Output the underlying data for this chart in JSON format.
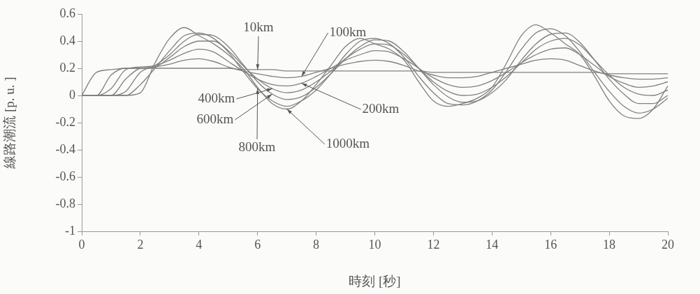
{
  "chart_data": {
    "type": "line",
    "xlabel": "時刻 [秒]",
    "ylabel": "線路潮流 [p. u. ]",
    "x": [
      0,
      0.5,
      1,
      1.5,
      2,
      2.5,
      3,
      3.5,
      4,
      4.5,
      5,
      5.5,
      6,
      6.5,
      7,
      7.5,
      8,
      8.5,
      9,
      9.5,
      10,
      10.5,
      11,
      11.5,
      12,
      12.5,
      13,
      13.5,
      14,
      14.5,
      15,
      15.5,
      16,
      16.5,
      17,
      17.5,
      18,
      18.5,
      19,
      19.5,
      20
    ],
    "xlim": [
      0,
      20
    ],
    "xticks": [
      0,
      2,
      4,
      6,
      8,
      10,
      12,
      14,
      16,
      18,
      20
    ],
    "ylim": [
      -1,
      0.6
    ],
    "yticks": [
      -1,
      -0.8,
      -0.6,
      -0.4,
      -0.2,
      0,
      0.2,
      0.4,
      0.6
    ],
    "grid": false,
    "legend": false,
    "marker": "none",
    "line_style": "solid",
    "series": [
      {
        "name": "10km",
        "color": "#808080",
        "values": [
          0,
          0.17,
          0.19,
          0.2,
          0.2,
          0.2,
          0.2,
          0.2,
          0.2,
          0.2,
          0.2,
          0.19,
          0.19,
          0.19,
          0.18,
          0.18,
          0.18,
          0.18,
          0.18,
          0.18,
          0.18,
          0.18,
          0.18,
          0.18,
          0.17,
          0.17,
          0.17,
          0.17,
          0.17,
          0.17,
          0.17,
          0.17,
          0.17,
          0.17,
          0.17,
          0.17,
          0.16,
          0.16,
          0.16,
          0.16,
          0.16
        ]
      },
      {
        "name": "100km",
        "color": "#808080",
        "values": [
          0,
          0,
          0.15,
          0.2,
          0.2,
          0.21,
          0.23,
          0.26,
          0.27,
          0.25,
          0.21,
          0.18,
          0.16,
          0.14,
          0.13,
          0.14,
          0.17,
          0.2,
          0.23,
          0.25,
          0.26,
          0.25,
          0.22,
          0.18,
          0.15,
          0.13,
          0.13,
          0.14,
          0.17,
          0.2,
          0.23,
          0.26,
          0.27,
          0.26,
          0.22,
          0.18,
          0.15,
          0.13,
          0.12,
          0.12,
          0.13
        ]
      },
      {
        "name": "200km",
        "color": "#808080",
        "values": [
          0,
          0,
          0.05,
          0.19,
          0.21,
          0.22,
          0.26,
          0.31,
          0.34,
          0.32,
          0.25,
          0.18,
          0.12,
          0.08,
          0.07,
          0.09,
          0.14,
          0.2,
          0.26,
          0.3,
          0.33,
          0.32,
          0.27,
          0.2,
          0.13,
          0.08,
          0.06,
          0.07,
          0.11,
          0.17,
          0.24,
          0.3,
          0.34,
          0.35,
          0.3,
          0.22,
          0.14,
          0.09,
          0.06,
          0.07,
          0.1
        ]
      },
      {
        "name": "400km",
        "color": "#808080",
        "values": [
          0,
          0,
          0,
          0.12,
          0.2,
          0.21,
          0.28,
          0.36,
          0.4,
          0.4,
          0.33,
          0.22,
          0.12,
          0.05,
          0.02,
          0.04,
          0.1,
          0.18,
          0.27,
          0.34,
          0.38,
          0.37,
          0.3,
          0.2,
          0.1,
          0.03,
          0,
          0.01,
          0.06,
          0.14,
          0.24,
          0.34,
          0.4,
          0.42,
          0.37,
          0.26,
          0.15,
          0.06,
          0.01,
          0,
          0.04
        ]
      },
      {
        "name": "600km",
        "color": "#808080",
        "values": [
          0,
          0,
          0,
          0.03,
          0.17,
          0.22,
          0.3,
          0.4,
          0.45,
          0.44,
          0.36,
          0.23,
          0.1,
          0.01,
          -0.03,
          -0.01,
          0.06,
          0.16,
          0.27,
          0.36,
          0.41,
          0.4,
          0.32,
          0.2,
          0.08,
          -0.01,
          -0.05,
          -0.04,
          0.02,
          0.12,
          0.26,
          0.38,
          0.45,
          0.46,
          0.39,
          0.26,
          0.12,
          0.01,
          -0.06,
          -0.06,
          0
        ]
      },
      {
        "name": "800km",
        "color": "#808080",
        "values": [
          0,
          0,
          0,
          0,
          0.08,
          0.2,
          0.33,
          0.44,
          0.46,
          0.42,
          0.32,
          0.18,
          0.05,
          -0.04,
          -0.08,
          -0.04,
          0.04,
          0.16,
          0.3,
          0.4,
          0.42,
          0.38,
          0.28,
          0.14,
          0.02,
          -0.06,
          -0.07,
          -0.04,
          0.04,
          0.18,
          0.34,
          0.46,
          0.49,
          0.44,
          0.32,
          0.17,
          0.03,
          -0.08,
          -0.13,
          -0.1,
          -0.02
        ]
      },
      {
        "name": "1000km",
        "color": "#808080",
        "values": [
          0,
          0,
          0,
          0,
          0.02,
          0.24,
          0.42,
          0.5,
          0.44,
          0.38,
          0.3,
          0.2,
          0.06,
          -0.06,
          -0.1,
          -0.04,
          0.08,
          0.22,
          0.36,
          0.42,
          0.38,
          0.34,
          0.26,
          0.1,
          -0.04,
          -0.08,
          -0.06,
          -0.02,
          0.06,
          0.24,
          0.44,
          0.52,
          0.46,
          0.38,
          0.3,
          0.14,
          -0.04,
          -0.15,
          -0.17,
          -0.1,
          0.07
        ]
      }
    ]
  }
}
